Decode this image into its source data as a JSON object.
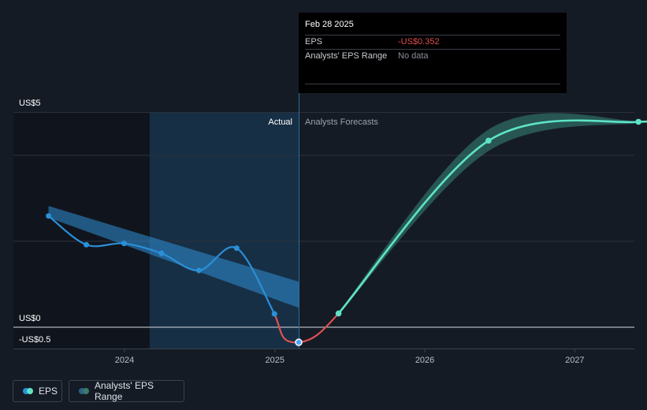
{
  "chart_data": {
    "type": "line",
    "x_axis": {
      "ticks": [
        "2024",
        "2025",
        "2026",
        "2027"
      ]
    },
    "y_axis": {
      "labels": [
        "US$5",
        "US$0",
        "-US$0.5"
      ],
      "ylim": [
        -0.5,
        5
      ]
    },
    "regions": {
      "past_label": "Actual",
      "future_label": "Analysts Forecasts"
    },
    "series": [
      {
        "name": "EPS",
        "color": "#2b8fd8",
        "points": [
          {
            "x": "2023-06-30",
            "y": 2.59
          },
          {
            "x": "2023-09-30",
            "y": 1.92
          },
          {
            "x": "2023-12-31",
            "y": 1.95
          },
          {
            "x": "2024-03-31",
            "y": 1.72
          },
          {
            "x": "2024-06-30",
            "y": 1.32
          },
          {
            "x": "2024-09-30",
            "y": 1.84
          },
          {
            "x": "2024-12-31",
            "y": 0.31
          },
          {
            "x": "2025-02-28",
            "y": -0.352
          }
        ]
      },
      {
        "name": "EPS forecast",
        "color": "#5ee3c6",
        "points": [
          {
            "x": "2025-02-28",
            "y": -0.352
          },
          {
            "x": "2025-06-05",
            "y": 0.32
          },
          {
            "x": "2026-06-05",
            "y": 4.34
          },
          {
            "x": "2027-06-05",
            "y": 4.78
          }
        ]
      }
    ],
    "ranges": [
      {
        "name": "Analysts' EPS Range",
        "color": "#2f8fd6",
        "upper": [
          {
            "x": "2023-06-30",
            "y": 2.82
          },
          {
            "x": "2025-02-28",
            "y": 0.6
          }
        ],
        "lower": [
          {
            "x": "2023-06-30",
            "y": 2.55
          },
          {
            "x": "2025-02-28",
            "y": 0.6
          }
        ]
      },
      {
        "name": "Analysts' EPS Range",
        "color": "#3fa08c",
        "upper": [
          {
            "x": "2025-06-05",
            "y": 0.35
          },
          {
            "x": "2026-06-05",
            "y": 4.6
          },
          {
            "x": "2027-06-05",
            "y": 4.8
          }
        ],
        "lower": [
          {
            "x": "2025-06-05",
            "y": 0.3
          },
          {
            "x": "2026-06-05",
            "y": 4.1
          },
          {
            "x": "2027-06-05",
            "y": 4.76
          }
        ]
      }
    ]
  },
  "tooltip": {
    "date": "Feb 28 2025",
    "rows": [
      {
        "label": "EPS",
        "value": "-US$0.352"
      },
      {
        "label": "Analysts' EPS Range",
        "value": "No data"
      }
    ]
  },
  "legend": [
    {
      "label": "EPS",
      "colors": [
        "#2b8fd8",
        "#5ee3c6"
      ]
    },
    {
      "label": "Analysts' EPS Range",
      "colors": [
        "#2d5f85",
        "#3c7a6f"
      ]
    }
  ]
}
